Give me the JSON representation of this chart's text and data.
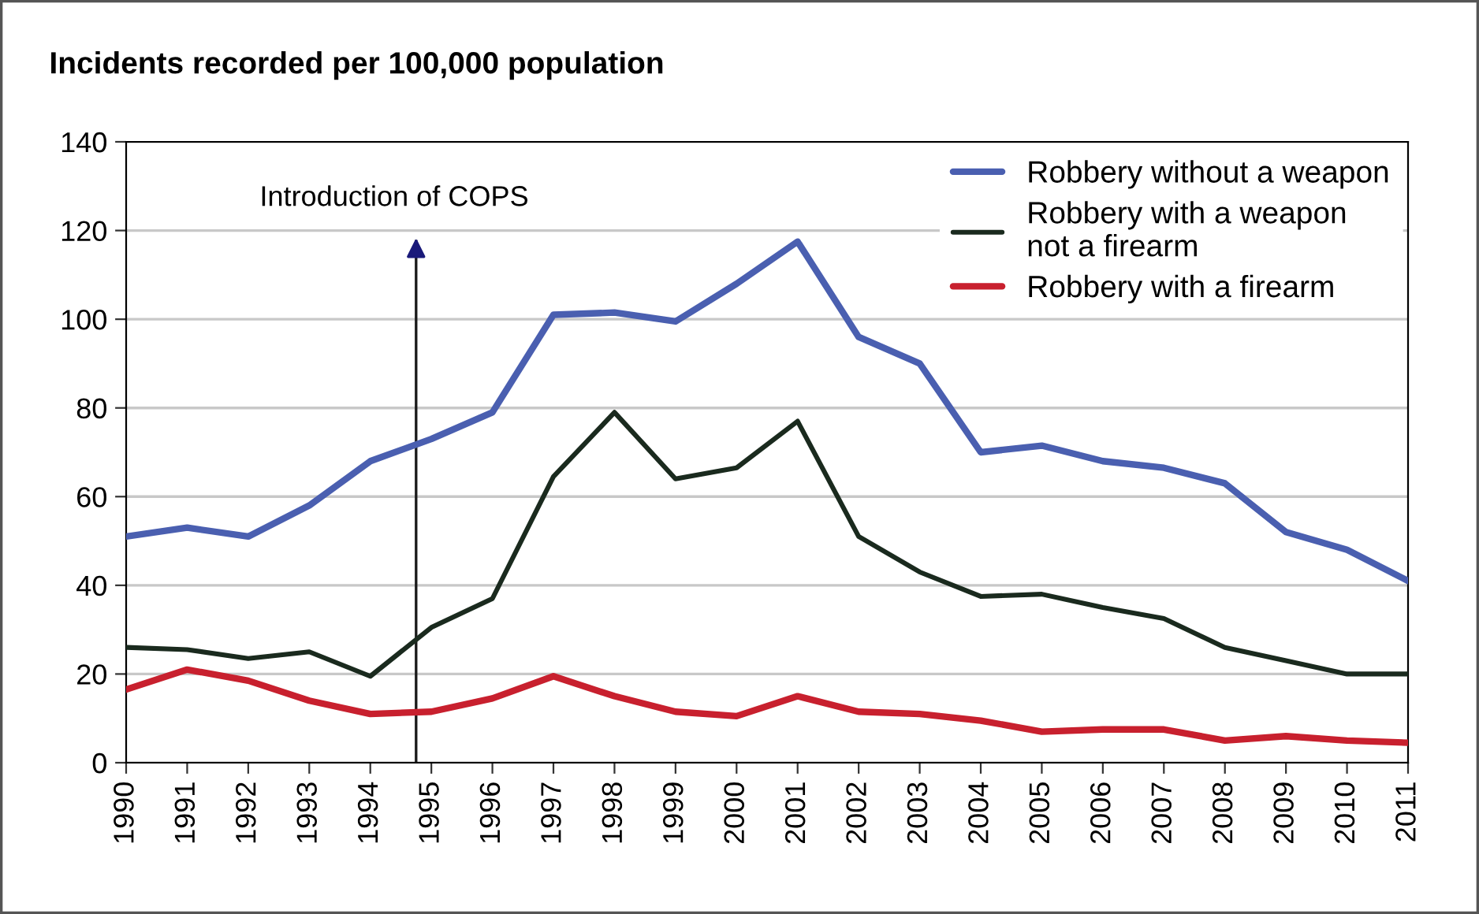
{
  "chart_data": {
    "type": "line",
    "ylabel": "Incidents recorded per 100,000 population",
    "x": [
      1990,
      1991,
      1992,
      1993,
      1994,
      1995,
      1996,
      1997,
      1998,
      1999,
      2000,
      2001,
      2002,
      2003,
      2004,
      2005,
      2006,
      2007,
      2008,
      2009,
      2010,
      2011
    ],
    "xlim": [
      1990,
      2011
    ],
    "xticks": [
      1990,
      1991,
      1992,
      1993,
      1994,
      1995,
      1996,
      1997,
      1998,
      1999,
      2000,
      2001,
      2002,
      2003,
      2004,
      2005,
      2006,
      2007,
      2008,
      2009,
      2010,
      2011
    ],
    "ylim": [
      0,
      140
    ],
    "yticks": [
      0,
      20,
      40,
      60,
      80,
      100,
      120,
      140
    ],
    "grid": "y",
    "legend": "top right",
    "marker": "none",
    "line_style": "solid",
    "series": [
      {
        "name": "Robbery without a weapon",
        "color": "#4a5fb0",
        "values": [
          51,
          53,
          51,
          58,
          68,
          73,
          79,
          101,
          101.5,
          99.5,
          108,
          117.5,
          96,
          90,
          70,
          71.5,
          68,
          66.5,
          63,
          52,
          48,
          41
        ]
      },
      {
        "name": "Robbery with a weapon\nnot a firearm",
        "color": "#1a2a1e",
        "values": [
          26,
          25.5,
          23.5,
          25,
          19.5,
          30.5,
          37,
          64.5,
          79,
          64,
          66.5,
          77,
          51,
          43,
          37.5,
          38,
          35,
          32.5,
          26,
          23,
          20,
          20
        ]
      },
      {
        "name": "Robbery with a firearm",
        "color": "#c8202e",
        "values": [
          16.5,
          21,
          18.5,
          14,
          11,
          11.5,
          14.5,
          19.5,
          15,
          11.5,
          10.5,
          15,
          11.5,
          11,
          9.5,
          7,
          7.5,
          7.5,
          5,
          6,
          5,
          4.5
        ]
      }
    ],
    "ref_lines": [
      {
        "axis": "x",
        "value": 1994.75,
        "label": "Introduction of COPS",
        "color": "#1a1a1a"
      }
    ]
  }
}
